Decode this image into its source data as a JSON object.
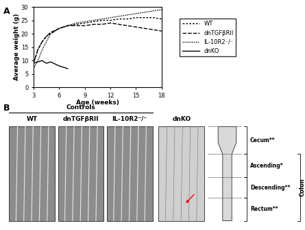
{
  "chart_data": {
    "type": "line",
    "panel": "A",
    "x_label": "Age (weeks)",
    "y_label": "Average weight (g)",
    "x": [
      3,
      3.5,
      4,
      4.5,
      5,
      6,
      7,
      8,
      9,
      10,
      11,
      12,
      13,
      14,
      15,
      16,
      17,
      18
    ],
    "series": [
      {
        "name": "WT",
        "color": "#000000",
        "line_style": "dashed",
        "values": [
          9,
          14,
          17,
          19,
          20,
          22,
          23,
          23.5,
          24,
          24.5,
          25,
          25,
          25.5,
          25.5,
          26,
          26,
          26,
          25.5
        ]
      },
      {
        "name": "dnTGFβRII",
        "color": "#000000",
        "line_style": "longdashed",
        "values": [
          9,
          14,
          17,
          19,
          20.5,
          22,
          23,
          23,
          23,
          23.5,
          23.5,
          24,
          23.5,
          23,
          22.5,
          22,
          21.5,
          21
        ]
      },
      {
        "name": "IL-10R2⁻/⁻",
        "color": "#000000",
        "line_style": "dotted",
        "values": [
          7,
          10,
          14,
          17,
          20,
          22,
          23,
          24,
          24.5,
          25,
          25.5,
          26,
          26.5,
          27,
          27.5,
          28,
          28.5,
          29
        ]
      },
      {
        "name": "dnKO",
        "color": "#000000",
        "line_style": "solid",
        "values": [
          9,
          9.5,
          10,
          9,
          9.5,
          8,
          7,
          null,
          null,
          null,
          null,
          null,
          null,
          null,
          null,
          null,
          null,
          null
        ]
      }
    ],
    "xlim": [
      3,
      18
    ],
    "xticks": [
      3,
      6,
      9,
      12,
      15,
      18
    ],
    "ylim": [
      0,
      30
    ],
    "yticks": [
      0,
      5,
      10,
      15,
      20,
      25,
      30
    ],
    "grid": false,
    "legend": "center left"
  },
  "panel_b": {
    "panel": "B",
    "group_label": "Controls",
    "images": [
      "WT",
      "dnTGFβRII",
      "IL-10R2⁻/⁻",
      "dnKO"
    ],
    "segments": [
      "Cecum**",
      "Ascending*",
      "Descending**",
      "Rectum**"
    ],
    "colon_label": "Colon"
  }
}
